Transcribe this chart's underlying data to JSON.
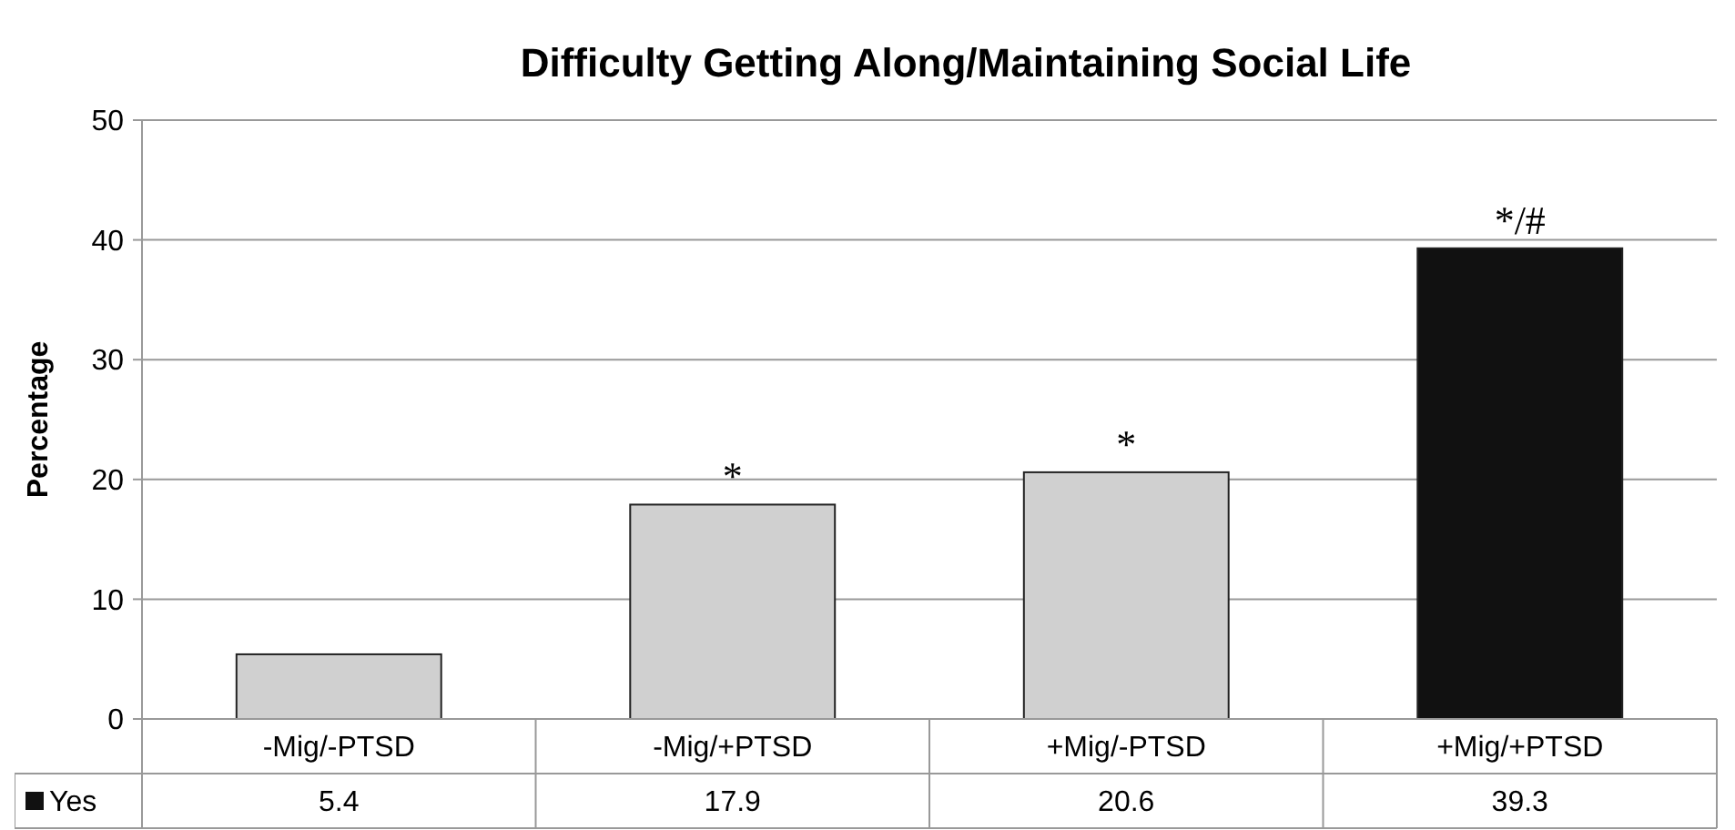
{
  "chart_data": {
    "type": "bar",
    "title": "Difficulty Getting Along/Maintaining Social Life",
    "ylabel": "Percentage",
    "categories": [
      "-Mig/-PTSD",
      "-Mig/+PTSD",
      "+Mig/-PTSD",
      "+Mig/+PTSD"
    ],
    "series": [
      {
        "name": "Yes",
        "color": "#111111",
        "colors": [
          "#d0d0d0",
          "#d0d0d0",
          "#d0d0d0",
          "#111111"
        ],
        "values": [
          5.4,
          17.9,
          20.6,
          39.3
        ]
      }
    ],
    "ylim": [
      0,
      50
    ],
    "yticks": [
      0,
      10,
      20,
      30,
      40,
      50
    ],
    "grid": "y",
    "legend": "bottom",
    "data_labels": true,
    "annotations": [
      {
        "text": "*",
        "x": "-Mig/+PTSD",
        "y": 17.9
      },
      {
        "text": "*",
        "x": "+Mig/-PTSD",
        "y": 20.6
      },
      {
        "text": "*/#",
        "x": "+Mig/+PTSD",
        "y": 39.3
      }
    ]
  }
}
